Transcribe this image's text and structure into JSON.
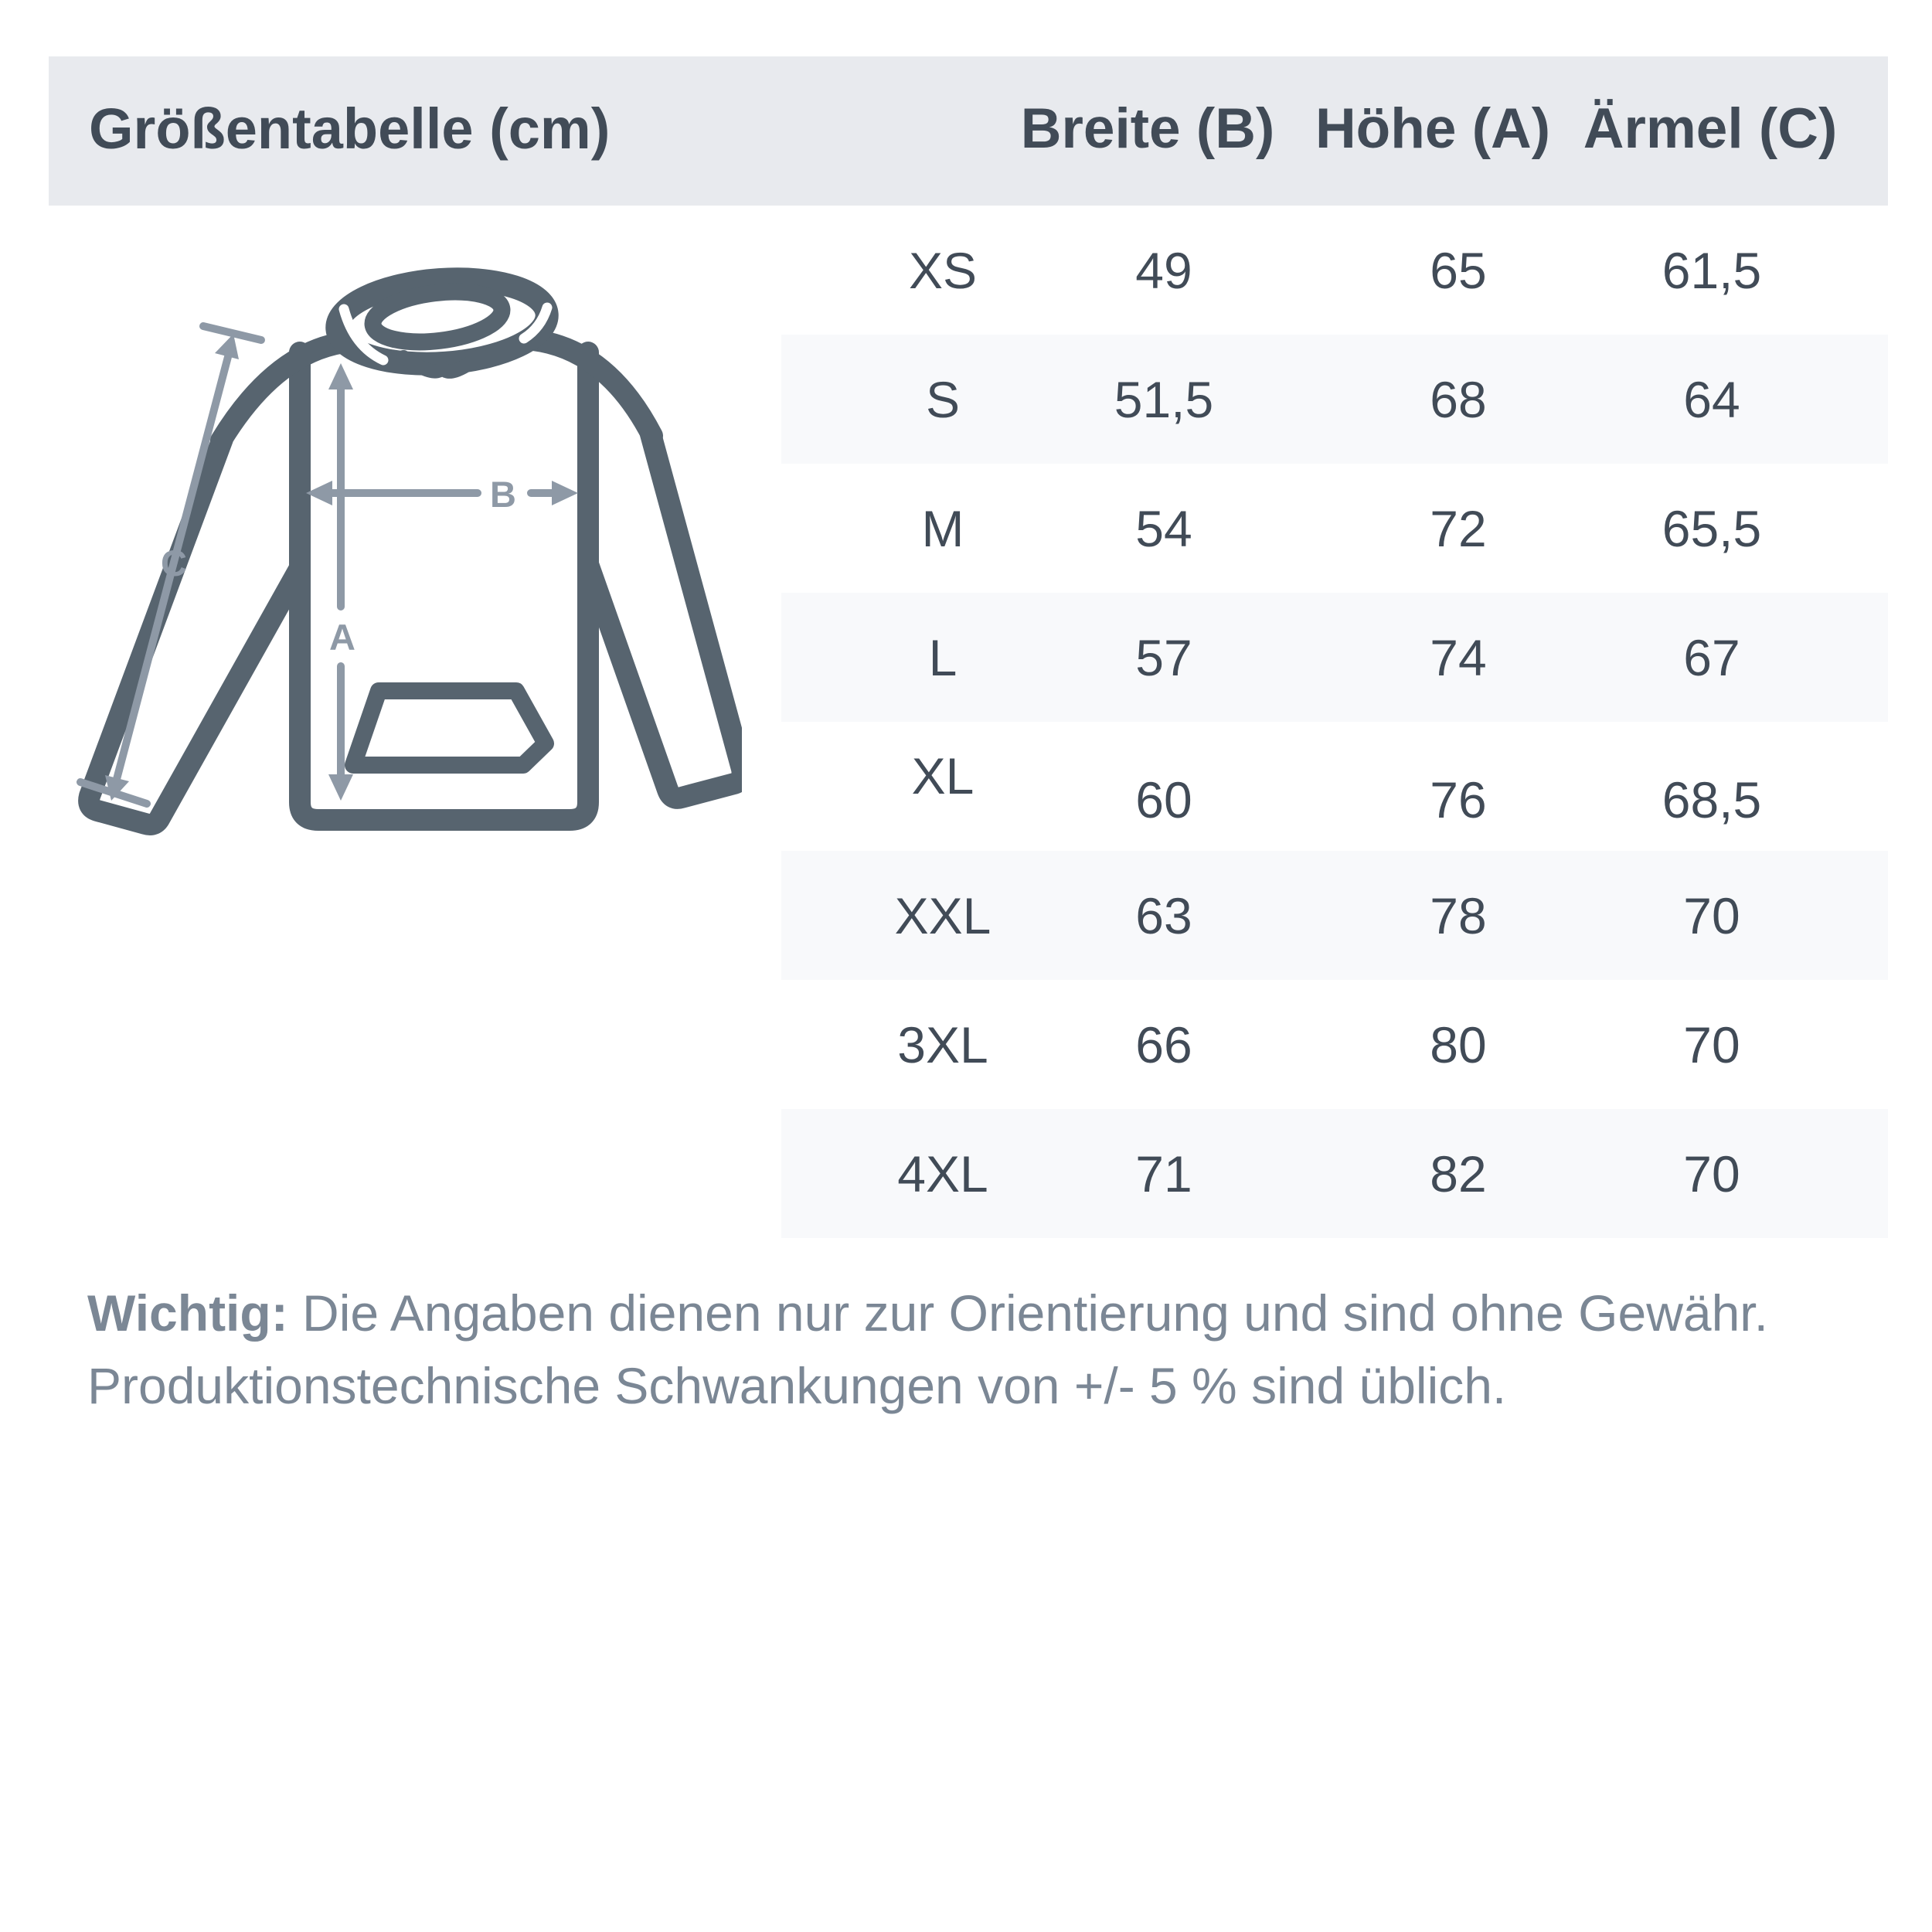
{
  "header": {
    "title": "Größentabelle (cm)",
    "columns": [
      "Breite (B)",
      "Höhe (A)",
      "Ärmel (C)"
    ]
  },
  "table": {
    "rows": [
      {
        "size": "XS",
        "values": [
          "49",
          "65",
          "61,5"
        ]
      },
      {
        "size": "S",
        "values": [
          "51,5",
          "68",
          "64"
        ]
      },
      {
        "size": "M",
        "values": [
          "54",
          "72",
          "65,5"
        ]
      },
      {
        "size": "L",
        "values": [
          "57",
          "74",
          "67"
        ]
      },
      {
        "size": "XL",
        "values": [
          "60",
          "76",
          "68,5"
        ]
      },
      {
        "size": "XXL",
        "values": [
          "63",
          "78",
          "70"
        ]
      },
      {
        "size": "3XL",
        "values": [
          "66",
          "80",
          "70"
        ]
      },
      {
        "size": "4XL",
        "values": [
          "71",
          "82",
          "70"
        ]
      }
    ]
  },
  "diagram": {
    "label_a": "A",
    "label_b": "B",
    "label_c": "C"
  },
  "footer": {
    "bold_prefix": "Wichtig:",
    "line1_rest": " Die Angaben dienen nur zur Orientierung und sind ohne Gewähr.",
    "line2": "Produktionstechnische Schwankungen von +/- 5 % sind üblich."
  },
  "colors": {
    "header_bg": "#e8eaee",
    "stripe_bg": "#f8f9fb",
    "text_dark": "#414b57",
    "footer_text": "#7b8795",
    "outline": "#57646f",
    "arrow": "#8e99a6"
  },
  "chart_data": {
    "type": "table",
    "title": "Größentabelle (cm)",
    "units": "cm",
    "columns": [
      "",
      "Breite (B)",
      "Höhe (A)",
      "Ärmel (C)"
    ],
    "rows": [
      [
        "XS",
        "49",
        "65",
        "61,5"
      ],
      [
        "S",
        "51,5",
        "68",
        "64"
      ],
      [
        "M",
        "54",
        "72",
        "65,5"
      ],
      [
        "L",
        "57",
        "74",
        "67"
      ],
      [
        "XL",
        "60",
        "76",
        "68,5"
      ],
      [
        "XXL",
        "63",
        "78",
        "70"
      ],
      [
        "3XL",
        "66",
        "80",
        "70"
      ],
      [
        "4XL",
        "71",
        "82",
        "70"
      ]
    ],
    "note": "Wichtig: Die Angaben dienen nur zur Orientierung und sind ohne Gewähr. Produktionstechnische Schwankungen von +/- 5 % sind üblich."
  }
}
